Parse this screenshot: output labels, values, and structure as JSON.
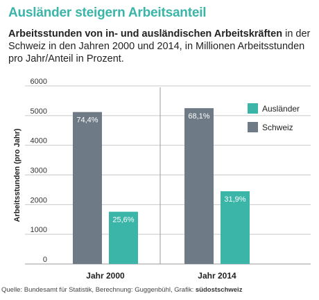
{
  "title": "Ausländer steigern Arbeitsanteil",
  "subtitle": {
    "bold": "Arbeitsstunden von in- und ausländischen Arbeitskräften",
    "normal": " in der Schweiz in den Jahren 2000 und 2014, in Millionen Arbeitsstunden pro Jahr/Anteil in Prozent."
  },
  "source": {
    "text": "Quelle: Bundesamt für Statistik, Berechnung: Guggenbühl, Grafik: ",
    "brand": "südostschweiz"
  },
  "colors": {
    "schweiz": "#6e7a85",
    "auslaender": "#3ab5a8",
    "title": "#3ab5a8"
  },
  "chart_data": {
    "type": "bar",
    "title": "Ausländer steigern Arbeitsanteil",
    "ylabel": "Arbeitsstunden (pro Jahr)",
    "xlabel": "",
    "ylim": [
      0,
      6000
    ],
    "yticks": [
      0,
      1000,
      2000,
      3000,
      4000,
      5000,
      6000
    ],
    "grid": true,
    "legend_position": "right",
    "categories": [
      "Jahr 2000",
      "Jahr 2014"
    ],
    "series": [
      {
        "name": "Schweiz",
        "values": [
          5120,
          5250
        ],
        "labels": [
          "74,4%",
          "68,1%"
        ]
      },
      {
        "name": "Ausländer",
        "values": [
          1760,
          2450
        ],
        "labels": [
          "25,6%",
          "31,9%"
        ]
      }
    ]
  }
}
